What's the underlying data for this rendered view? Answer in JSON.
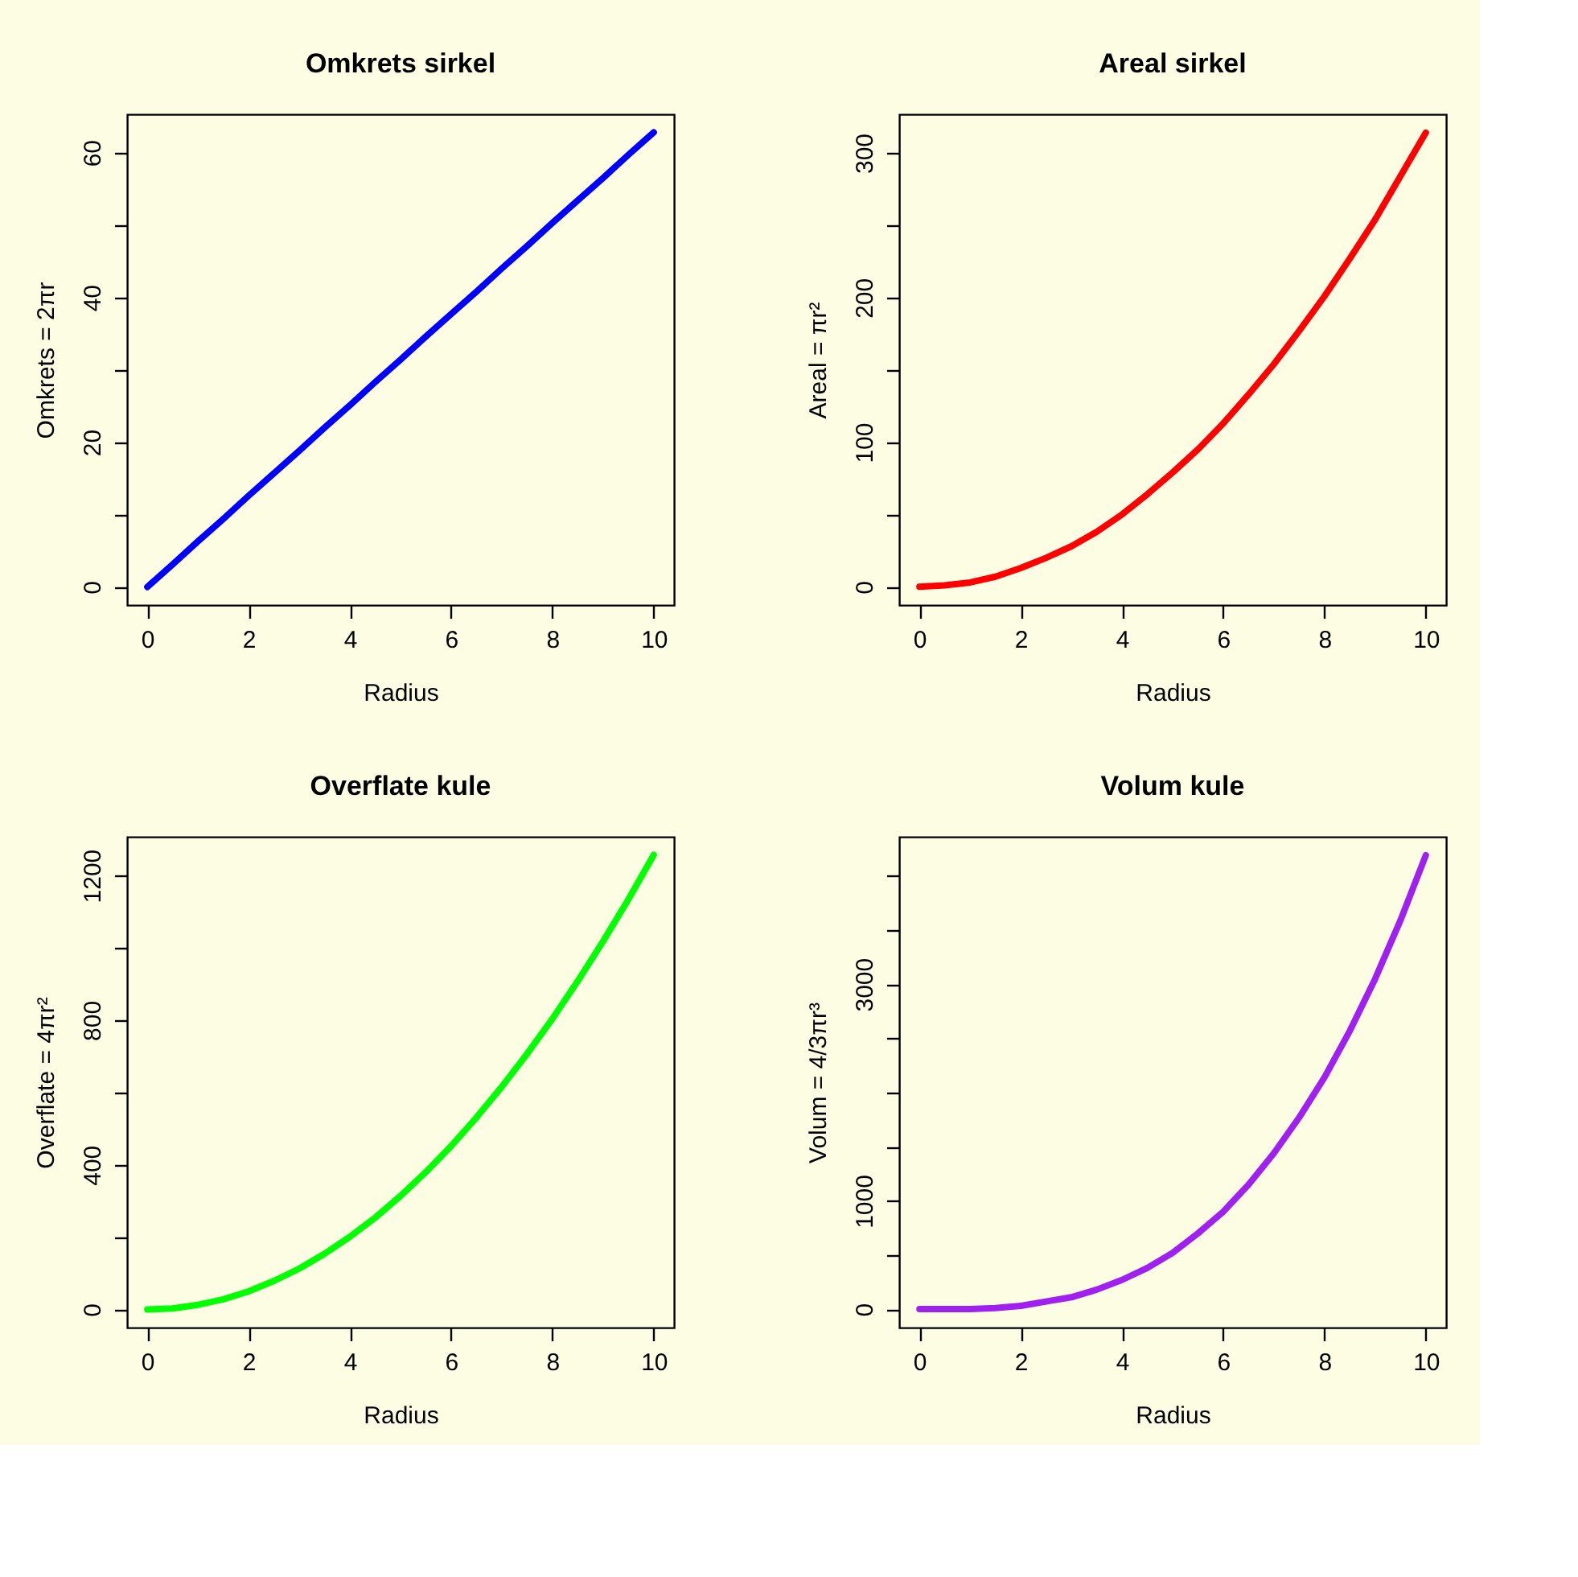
{
  "chart_data": [
    {
      "type": "line",
      "title": "Omkrets sirkel",
      "xlabel": "Radius",
      "ylabel": "Omkrets = 2πr",
      "grid": false,
      "marker": "none",
      "line_style": "solid",
      "x": [
        0,
        0.5,
        1,
        1.5,
        2,
        2.5,
        3,
        3.5,
        4,
        4.5,
        5,
        5.5,
        6,
        6.5,
        7,
        7.5,
        8,
        8.5,
        9,
        9.5,
        10
      ],
      "series": [
        {
          "color": "#0000ff",
          "values": [
            0,
            3.1,
            6.3,
            9.4,
            12.6,
            15.7,
            18.8,
            22.0,
            25.1,
            28.3,
            31.4,
            34.6,
            37.7,
            40.8,
            44.0,
            47.1,
            50.3,
            53.4,
            56.5,
            59.7,
            62.8
          ]
        }
      ],
      "xlim": [
        -0.4,
        10.4
      ],
      "xticks": [
        0,
        2,
        4,
        6,
        8,
        10
      ],
      "ylim": [
        -2.5,
        65.3
      ],
      "yticks": [
        0,
        {
          "value": 10,
          "label": null
        },
        20,
        {
          "value": 30,
          "label": null
        },
        40,
        {
          "value": 50,
          "label": null
        },
        60
      ]
    },
    {
      "type": "line",
      "title": "Areal sirkel",
      "xlabel": "Radius",
      "ylabel": "Areal = πr²",
      "grid": false,
      "marker": "none",
      "line_style": "solid",
      "x": [
        0,
        0.5,
        1,
        1.5,
        2,
        2.5,
        3,
        3.5,
        4,
        4.5,
        5,
        5.5,
        6,
        6.5,
        7,
        7.5,
        8,
        8.5,
        9,
        9.5,
        10
      ],
      "series": [
        {
          "color": "#ff0000",
          "values": [
            0,
            1,
            3,
            7,
            13,
            20,
            28,
            38,
            50,
            64,
            79,
            95,
            113,
            133,
            154,
            177,
            201,
            227,
            254,
            284,
            314
          ]
        }
      ],
      "xlim": [
        -0.4,
        10.4
      ],
      "xticks": [
        0,
        2,
        4,
        6,
        8,
        10
      ],
      "ylim": [
        -12.6,
        326.7
      ],
      "yticks": [
        0,
        {
          "value": 50,
          "label": null
        },
        100,
        {
          "value": 150,
          "label": null
        },
        200,
        {
          "value": 250,
          "label": null
        },
        300
      ]
    },
    {
      "type": "line",
      "title": "Overflate kule",
      "xlabel": "Radius",
      "ylabel": "Overflate = 4πr²",
      "grid": false,
      "marker": "none",
      "line_style": "solid",
      "x": [
        0,
        0.5,
        1,
        1.5,
        2,
        2.5,
        3,
        3.5,
        4,
        4.5,
        5,
        5.5,
        6,
        6.5,
        7,
        7.5,
        8,
        8.5,
        9,
        9.5,
        10
      ],
      "series": [
        {
          "color": "#00ff00",
          "values": [
            0,
            3,
            13,
            28,
            50,
            79,
            113,
            154,
            201,
            254,
            314,
            380,
            452,
            531,
            616,
            707,
            804,
            908,
            1018,
            1134,
            1257
          ]
        }
      ],
      "xlim": [
        -0.4,
        10.4
      ],
      "xticks": [
        0,
        2,
        4,
        6,
        8,
        10
      ],
      "ylim": [
        -50,
        1307
      ],
      "yticks": [
        0,
        {
          "value": 200,
          "label": null
        },
        400,
        {
          "value": 600,
          "label": null
        },
        800,
        {
          "value": 1000,
          "label": null
        },
        1200
      ]
    },
    {
      "type": "line",
      "title": "Volum kule",
      "xlabel": "Radius",
      "ylabel": "Volum = 4/3πr³",
      "grid": false,
      "marker": "none",
      "line_style": "solid",
      "x": [
        0,
        0.5,
        1,
        1.5,
        2,
        2.5,
        3,
        3.5,
        4,
        4.5,
        5,
        5.5,
        6,
        6.5,
        7,
        7.5,
        8,
        8.5,
        9,
        9.5,
        10
      ],
      "series": [
        {
          "color": "#a020f0",
          "values": [
            0,
            0,
            0,
            10,
            30,
            70,
            110,
            180,
            270,
            380,
            520,
            700,
            900,
            1150,
            1440,
            1770,
            2140,
            2570,
            3050,
            3590,
            4190
          ]
        }
      ],
      "xlim": [
        -0.4,
        10.4
      ],
      "xticks": [
        0,
        2,
        4,
        6,
        8,
        10
      ],
      "ylim": [
        -170,
        4360
      ],
      "yticks": [
        0,
        {
          "value": 500,
          "label": null
        },
        1000,
        {
          "value": 1500,
          "label": null
        },
        {
          "value": 2000,
          "label": null
        },
        {
          "value": 2500,
          "label": null
        },
        3000,
        {
          "value": 3500,
          "label": null
        },
        {
          "value": 4000,
          "label": null
        }
      ]
    }
  ]
}
